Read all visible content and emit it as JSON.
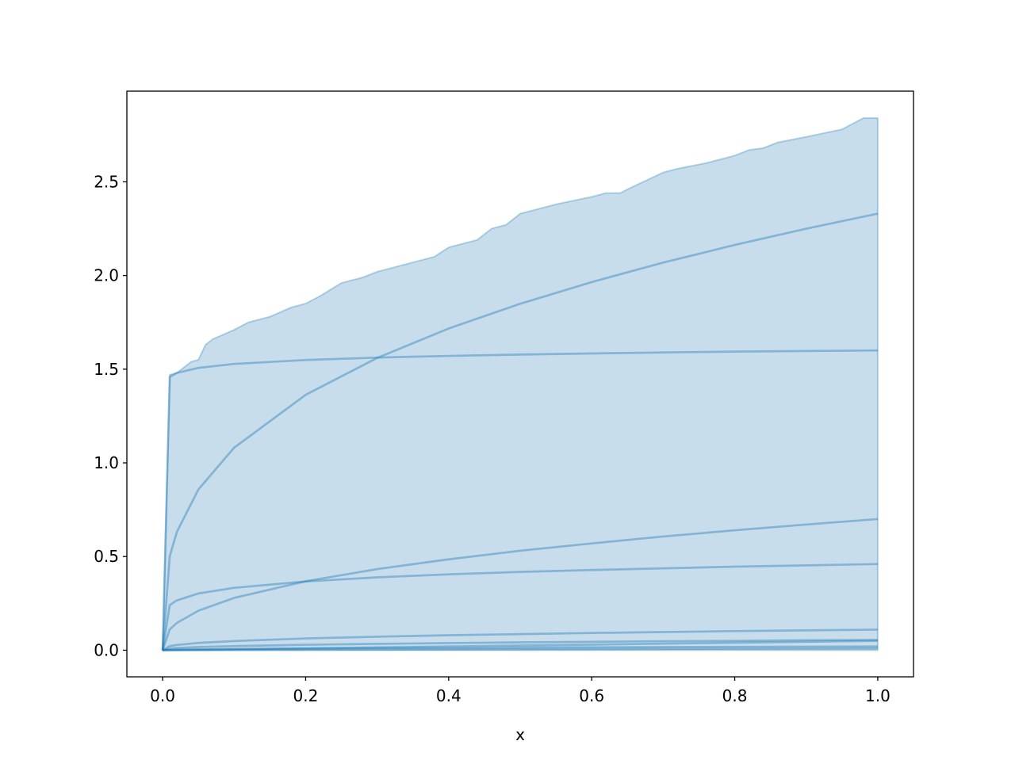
{
  "chart_data": {
    "type": "line",
    "title": "",
    "xlabel": "x",
    "ylabel": "",
    "xlim": [
      -0.05,
      1.05
    ],
    "ylim": [
      -0.142,
      2.984
    ],
    "xticks": [
      0.0,
      0.2,
      0.4,
      0.6,
      0.8,
      1.0
    ],
    "xtick_labels": [
      "0.0",
      "0.2",
      "0.4",
      "0.6",
      "0.8",
      "1.0"
    ],
    "yticks": [
      0.0,
      0.5,
      1.0,
      1.5,
      2.0,
      2.5
    ],
    "ytick_labels": [
      "0.0",
      "0.5",
      "1.0",
      "1.5",
      "2.0",
      "2.5"
    ],
    "grid": false,
    "color": "#1f77b4",
    "x": [
      0,
      0.01,
      0.02,
      0.05,
      0.1,
      0.2,
      0.3,
      0.4,
      0.5,
      0.6,
      0.7,
      0.8,
      0.9,
      1.0
    ],
    "series": [
      {
        "values": [
          0,
          0.502,
          0.632,
          0.858,
          1.081,
          1.363,
          1.56,
          1.717,
          1.849,
          1.965,
          2.069,
          2.163,
          2.25,
          2.33
        ]
      },
      {
        "values": [
          0,
          1.459,
          1.48,
          1.507,
          1.528,
          1.549,
          1.562,
          1.571,
          1.578,
          1.584,
          1.589,
          1.594,
          1.597,
          1.6
        ]
      },
      {
        "values": [
          0,
          0.111,
          0.146,
          0.211,
          0.279,
          0.368,
          0.433,
          0.485,
          0.531,
          0.57,
          0.607,
          0.64,
          0.671,
          0.7
        ]
      },
      {
        "values": [
          0,
          0.241,
          0.266,
          0.303,
          0.333,
          0.367,
          0.389,
          0.405,
          0.418,
          0.428,
          0.437,
          0.446,
          0.453,
          0.46
        ]
      },
      {
        "values": [
          0,
          0.022,
          0.028,
          0.039,
          0.049,
          0.063,
          0.072,
          0.08,
          0.086,
          0.092,
          0.097,
          0.102,
          0.106,
          0.11
        ]
      },
      {
        "values": [
          0,
          0.009,
          0.012,
          0.017,
          0.022,
          0.029,
          0.034,
          0.038,
          0.042,
          0.045,
          0.048,
          0.05,
          0.053,
          0.055
        ]
      },
      {
        "values": [
          0,
          0.0005,
          0.001,
          0.0025,
          0.005,
          0.01,
          0.015,
          0.02,
          0.025,
          0.03,
          0.035,
          0.04,
          0.045,
          0.05
        ]
      },
      {
        "values": [
          0,
          0.002,
          0.003,
          0.0045,
          0.0063,
          0.0089,
          0.011,
          0.0126,
          0.0141,
          0.0155,
          0.0167,
          0.0179,
          0.019,
          0.02
        ]
      },
      {
        "values": [
          0,
          0.0001,
          0.0002,
          0.0005,
          0.001,
          0.002,
          0.003,
          0.004,
          0.005,
          0.006,
          0.007,
          0.008,
          0.009,
          0.01
        ]
      }
    ],
    "band": {
      "x": [
        0,
        0.01,
        0.02,
        0.03,
        0.04,
        0.05,
        0.06,
        0.07,
        0.1,
        0.12,
        0.15,
        0.18,
        0.2,
        0.22,
        0.25,
        0.28,
        0.3,
        0.35,
        0.38,
        0.4,
        0.44,
        0.46,
        0.48,
        0.5,
        0.55,
        0.6,
        0.62,
        0.64,
        0.65,
        0.7,
        0.72,
        0.76,
        0.8,
        0.82,
        0.84,
        0.86,
        0.9,
        0.95,
        0.97,
        0.98,
        1.0
      ],
      "upper": [
        0,
        1.47,
        1.48,
        1.51,
        1.54,
        1.55,
        1.63,
        1.66,
        1.71,
        1.75,
        1.78,
        1.83,
        1.85,
        1.89,
        1.96,
        1.99,
        2.02,
        2.07,
        2.1,
        2.15,
        2.19,
        2.25,
        2.27,
        2.33,
        2.38,
        2.42,
        2.44,
        2.44,
        2.46,
        2.55,
        2.57,
        2.6,
        2.64,
        2.67,
        2.68,
        2.71,
        2.74,
        2.78,
        2.82,
        2.84,
        2.84
      ],
      "lower": [
        0,
        0,
        0,
        0,
        0,
        0,
        0,
        0,
        0,
        0,
        0,
        0,
        0,
        0,
        0,
        0,
        0,
        0,
        0,
        0,
        0,
        0,
        0,
        0,
        0,
        0,
        0,
        0,
        0,
        0,
        0,
        0,
        0,
        0,
        0,
        0,
        0,
        0,
        0,
        0,
        0
      ]
    }
  }
}
